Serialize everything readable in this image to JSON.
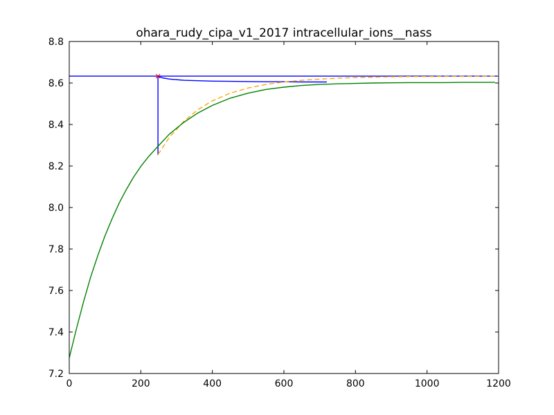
{
  "chart_data": {
    "type": "line",
    "title": "ohara_rudy_cipa_v1_2017 intracellular_ions__nass",
    "xlabel": "",
    "ylabel": "",
    "xlim": [
      0,
      1200
    ],
    "ylim": [
      7.2,
      8.8
    ],
    "x_ticks": [
      0,
      200,
      400,
      600,
      800,
      1000,
      1200
    ],
    "x_tick_labels": [
      "0",
      "200",
      "400",
      "600",
      "800",
      "1000",
      "1200"
    ],
    "y_ticks": [
      7.2,
      7.4,
      7.6,
      7.8,
      8.0,
      8.2,
      8.4,
      8.6,
      8.8
    ],
    "y_tick_labels": [
      "7.2",
      "7.4",
      "7.6",
      "7.8",
      "8.0",
      "8.2",
      "8.4",
      "8.6",
      "8.8"
    ],
    "grid": false,
    "legend": "none",
    "series": [
      {
        "color": "#0000ff",
        "style": "solid",
        "x": [
          0,
          248,
          248,
          248,
          260,
          280,
          320,
          360,
          400,
          450,
          500,
          550,
          600,
          650,
          700,
          720
        ],
        "y": [
          8.633,
          8.633,
          8.255,
          8.633,
          8.625,
          8.619,
          8.613,
          8.611,
          8.609,
          8.608,
          8.607,
          8.606,
          8.606,
          8.605,
          8.605,
          8.605
        ]
      },
      {
        "color": "#0000ff",
        "style": "solid",
        "x": [
          248,
          1200
        ],
        "y": [
          8.633,
          8.633
        ]
      },
      {
        "color": "#ffa500",
        "style": "dashed",
        "x": [
          248,
          280,
          320,
          360,
          400,
          450,
          500,
          550,
          600,
          650,
          700,
          750,
          800,
          850,
          900,
          950,
          1000,
          1050,
          1100,
          1150,
          1200
        ],
        "y": [
          8.255,
          8.339,
          8.415,
          8.472,
          8.514,
          8.551,
          8.576,
          8.593,
          8.605,
          8.613,
          8.619,
          8.623,
          8.626,
          8.628,
          8.63,
          8.631,
          8.631,
          8.632,
          8.632,
          8.632,
          8.633
        ]
      },
      {
        "color": "#008000",
        "style": "solid",
        "x": [
          0,
          20,
          40,
          60,
          80,
          100,
          120,
          140,
          160,
          180,
          200,
          220,
          248,
          280,
          320,
          360,
          400,
          450,
          500,
          550,
          600,
          650,
          700,
          750,
          800,
          850,
          900,
          950,
          1000,
          1050,
          1100,
          1150,
          1190
        ],
        "y": [
          7.275,
          7.415,
          7.546,
          7.666,
          7.769,
          7.864,
          7.947,
          8.023,
          8.088,
          8.147,
          8.198,
          8.242,
          8.295,
          8.354,
          8.41,
          8.456,
          8.492,
          8.527,
          8.551,
          8.569,
          8.58,
          8.588,
          8.593,
          8.596,
          8.598,
          8.6,
          8.601,
          8.602,
          8.602,
          8.602,
          8.603,
          8.603,
          8.603
        ]
      }
    ],
    "markers": [
      {
        "x": 248,
        "y": 8.633,
        "symbol": "x",
        "color": "#ff0000"
      }
    ]
  }
}
